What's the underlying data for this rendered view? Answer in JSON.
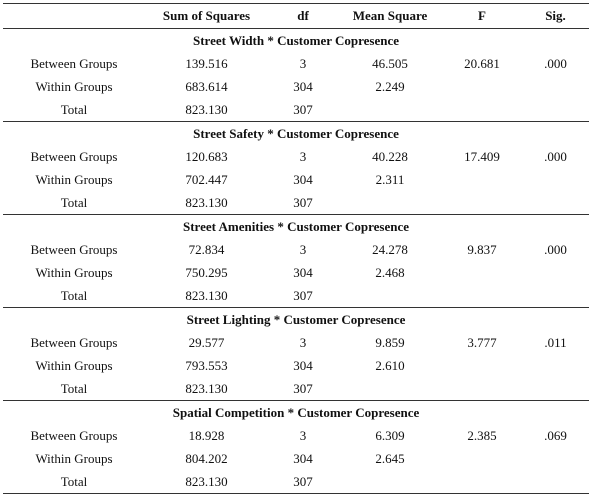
{
  "headers": [
    "",
    "Sum of Squares",
    "df",
    "Mean Square",
    "F",
    "Sig."
  ],
  "sections": [
    {
      "title": "Street Width * Customer Copresence",
      "rows": [
        {
          "source": "Between Groups",
          "ss": "139.516",
          "df": "3",
          "ms": "46.505",
          "f": "20.681",
          "sig": ".000"
        },
        {
          "source": "Within Groups",
          "ss": "683.614",
          "df": "304",
          "ms": "2.249",
          "f": "",
          "sig": ""
        },
        {
          "source": "Total",
          "ss": "823.130",
          "df": "307",
          "ms": "",
          "f": "",
          "sig": ""
        }
      ]
    },
    {
      "title": "Street Safety * Customer Copresence",
      "rows": [
        {
          "source": "Between Groups",
          "ss": "120.683",
          "df": "3",
          "ms": "40.228",
          "f": "17.409",
          "sig": ".000"
        },
        {
          "source": "Within Groups",
          "ss": "702.447",
          "df": "304",
          "ms": "2.311",
          "f": "",
          "sig": ""
        },
        {
          "source": "Total",
          "ss": "823.130",
          "df": "307",
          "ms": "",
          "f": "",
          "sig": ""
        }
      ]
    },
    {
      "title": "Street Amenities * Customer Copresence",
      "rows": [
        {
          "source": "Between Groups",
          "ss": "72.834",
          "df": "3",
          "ms": "24.278",
          "f": "9.837",
          "sig": ".000"
        },
        {
          "source": "Within Groups",
          "ss": "750.295",
          "df": "304",
          "ms": "2.468",
          "f": "",
          "sig": ""
        },
        {
          "source": "Total",
          "ss": "823.130",
          "df": "307",
          "ms": "",
          "f": "",
          "sig": ""
        }
      ]
    },
    {
      "title": "Street Lighting * Customer Copresence",
      "rows": [
        {
          "source": "Between Groups",
          "ss": "29.577",
          "df": "3",
          "ms": "9.859",
          "f": "3.777",
          "sig": ".011"
        },
        {
          "source": "Within Groups",
          "ss": "793.553",
          "df": "304",
          "ms": "2.610",
          "f": "",
          "sig": ""
        },
        {
          "source": "Total",
          "ss": "823.130",
          "df": "307",
          "ms": "",
          "f": "",
          "sig": ""
        }
      ]
    },
    {
      "title": "Spatial Competition * Customer Copresence",
      "rows": [
        {
          "source": "Between Groups",
          "ss": "18.928",
          "df": "3",
          "ms": "6.309",
          "f": "2.385",
          "sig": ".069"
        },
        {
          "source": "Within Groups",
          "ss": "804.202",
          "df": "304",
          "ms": "2.645",
          "f": "",
          "sig": ""
        },
        {
          "source": "Total",
          "ss": "823.130",
          "df": "307",
          "ms": "",
          "f": "",
          "sig": ""
        }
      ]
    }
  ]
}
